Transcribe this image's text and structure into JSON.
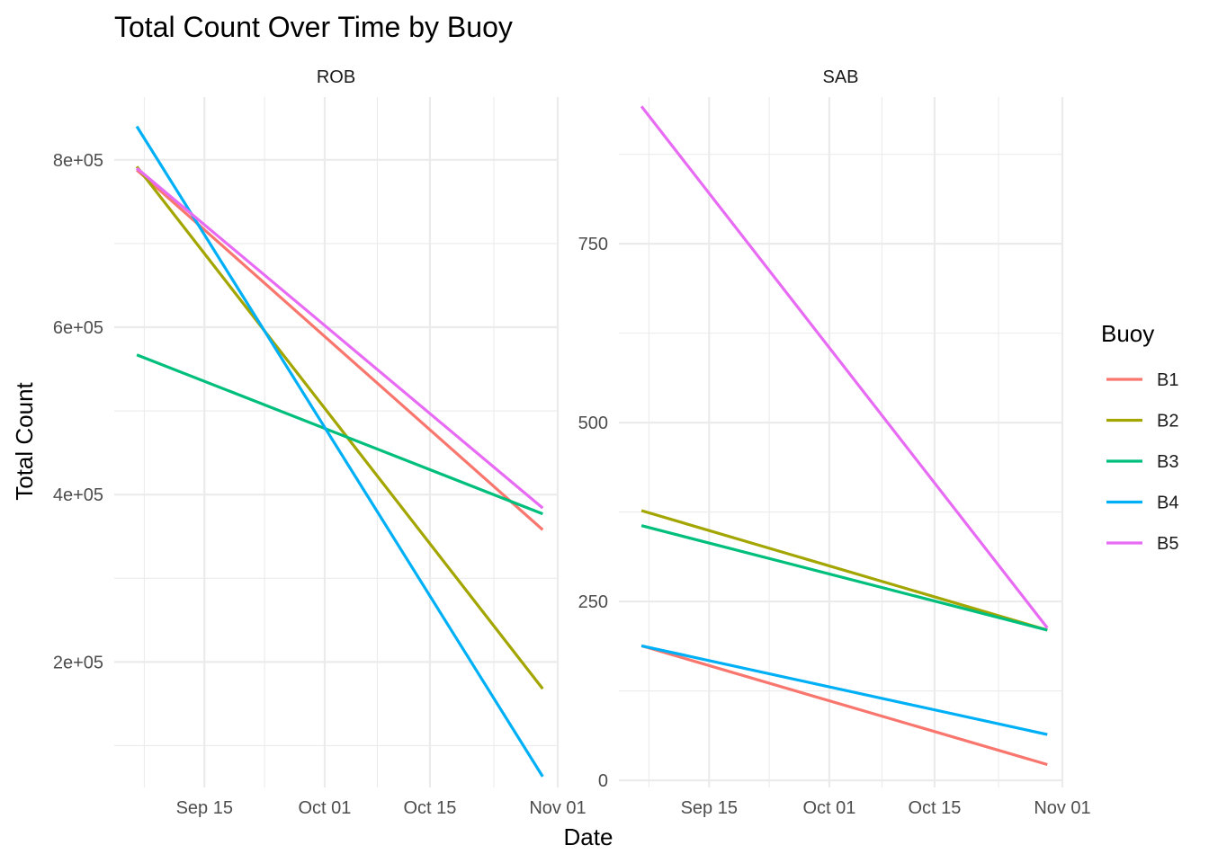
{
  "chart_data": {
    "type": "line",
    "title": "Total Count Over Time by Buoy",
    "xlabel": "Date",
    "ylabel": "Total Count",
    "grid": true,
    "legend": {
      "title": "Buoy",
      "placement": "right"
    },
    "x_ticks": [
      {
        "label": "Sep 15",
        "date": "2024-09-15"
      },
      {
        "label": "Oct 01",
        "date": "2024-10-01"
      },
      {
        "label": "Oct 15",
        "date": "2024-10-15"
      },
      {
        "label": "Nov 01",
        "date": "2024-11-01"
      }
    ],
    "xlim": [
      "2024-09-03",
      "2024-11-01"
    ],
    "series_colors": {
      "B1": "#F8766D",
      "B2": "#A3A500",
      "B3": "#00BF7D",
      "B4": "#00B0F6",
      "B5": "#E76BF3"
    },
    "panels": [
      {
        "facet": "ROB",
        "ylim": [
          50000,
          875000
        ],
        "y_ticks": [
          {
            "label": "2e+05",
            "value": 200000
          },
          {
            "label": "4e+05",
            "value": 400000
          },
          {
            "label": "6e+05",
            "value": 600000
          },
          {
            "label": "8e+05",
            "value": 800000
          }
        ],
        "series": [
          {
            "name": "B1",
            "x": [
              "2024-09-06",
              "2024-10-30"
            ],
            "values": [
              788000,
              358000
            ]
          },
          {
            "name": "B2",
            "x": [
              "2024-09-06",
              "2024-10-30"
            ],
            "values": [
              792000,
              168000
            ]
          },
          {
            "name": "B3",
            "x": [
              "2024-09-06",
              "2024-10-30"
            ],
            "values": [
              567000,
              377000
            ]
          },
          {
            "name": "B4",
            "x": [
              "2024-09-06",
              "2024-10-30"
            ],
            "values": [
              840000,
              63000
            ]
          },
          {
            "name": "B5",
            "x": [
              "2024-09-06",
              "2024-10-30"
            ],
            "values": [
              790000,
              384000
            ]
          }
        ]
      },
      {
        "facet": "SAB",
        "ylim": [
          -10,
          955
        ],
        "y_ticks": [
          {
            "label": "0",
            "value": 0
          },
          {
            "label": "250",
            "value": 250
          },
          {
            "label": "500",
            "value": 500
          },
          {
            "label": "750",
            "value": 750
          }
        ],
        "series": [
          {
            "name": "B1",
            "x": [
              "2024-09-06",
              "2024-10-30"
            ],
            "values": [
              188,
              22
            ]
          },
          {
            "name": "B2",
            "x": [
              "2024-09-06",
              "2024-10-30"
            ],
            "values": [
              377,
              210
            ]
          },
          {
            "name": "B3",
            "x": [
              "2024-09-06",
              "2024-10-30"
            ],
            "values": [
              356,
              210
            ]
          },
          {
            "name": "B4",
            "x": [
              "2024-09-06",
              "2024-10-30"
            ],
            "values": [
              188,
              64
            ]
          },
          {
            "name": "B5",
            "x": [
              "2024-09-06",
              "2024-10-30"
            ],
            "values": [
              942,
              213
            ]
          }
        ]
      }
    ]
  }
}
